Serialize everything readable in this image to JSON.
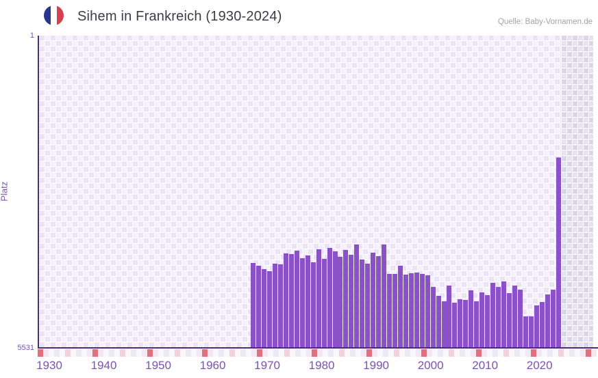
{
  "header": {
    "title": "Sihem in Frankreich (1930-2024)",
    "source": "Quelle: Baby-Vornamen.de",
    "flag_icon": "france-flag-icon",
    "flag_colors": [
      "#28368f",
      "#ffffff",
      "#d6404e"
    ]
  },
  "chart_data": {
    "type": "bar",
    "title": "Sihem in Frankreich (1930-2024)",
    "xlabel": "",
    "ylabel": "Platz",
    "y_axis": {
      "top_label": "1",
      "bottom_label": "5531",
      "min": 1,
      "max": 5531,
      "inverted": true,
      "grid": true
    },
    "x_ticks": [
      "1930",
      "1940",
      "1950",
      "1960",
      "1970",
      "1980",
      "1990",
      "2000",
      "2010",
      "2020"
    ],
    "x_range_years": [
      1928,
      2030
    ],
    "bar_color": "#8a52c6",
    "axis_color": "#4f2b7e",
    "tick_label_color": "#7b52ad",
    "no_data_from_year": 2024,
    "decade_marker_colors": {
      "decade": "#e0707c",
      "half_decade": "#f4d0da"
    },
    "series": [
      {
        "name": "Platz",
        "years": [
          1967,
          1968,
          1969,
          1970,
          1971,
          1972,
          1973,
          1974,
          1975,
          1976,
          1977,
          1978,
          1979,
          1980,
          1981,
          1982,
          1983,
          1984,
          1985,
          1986,
          1987,
          1988,
          1989,
          1990,
          1991,
          1992,
          1993,
          1994,
          1995,
          1996,
          1997,
          1998,
          1999,
          2000,
          2001,
          2002,
          2003,
          2004,
          2005,
          2006,
          2007,
          2008,
          2009,
          2010,
          2011,
          2012,
          2013,
          2014,
          2015,
          2016,
          2017,
          2018,
          2019,
          2020,
          2021,
          2022,
          2023
        ],
        "ranks": [
          4025,
          4075,
          4135,
          4175,
          4035,
          4050,
          3855,
          3875,
          3810,
          3945,
          3895,
          4020,
          3785,
          3960,
          3760,
          3825,
          3920,
          3795,
          3880,
          3705,
          3970,
          4040,
          3845,
          3910,
          3695,
          4220,
          4220,
          4080,
          4235,
          4215,
          4200,
          4220,
          4240,
          4455,
          4605,
          4705,
          4425,
          4725,
          4665,
          4685,
          4510,
          4705,
          4545,
          4595,
          4375,
          4450,
          4355,
          4560,
          4430,
          4505,
          4970,
          4970,
          4780,
          4720,
          4585,
          4500,
          2165
        ]
      }
    ]
  }
}
